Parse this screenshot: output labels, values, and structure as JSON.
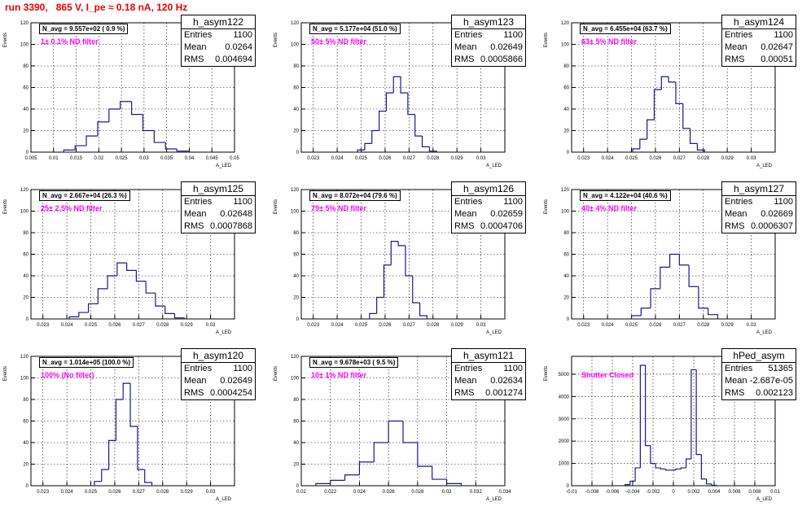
{
  "title": "run 3390,   865 V, I_pe ≈ 0.18 nA, 120 Hz",
  "chart_data": [
    {
      "type": "bar",
      "name": "h_asym122",
      "annotation": "N_avg = 9.557e+02 ( 0.9 %)",
      "filter": "1± 0.1% ND filter",
      "stats": {
        "Entries": "1100",
        "Mean": "0.0264",
        "RMS": "0.004694"
      },
      "xlim": [
        0.005,
        0.05
      ],
      "xticks": [
        "0.005",
        "0.01",
        "0.015",
        "0.02",
        "0.025",
        "0.03",
        "0.035",
        "0.04",
        "0.045",
        "0.05"
      ],
      "ylim": [
        0,
        120
      ],
      "yticks": [
        "0",
        "20",
        "40",
        "60",
        "80",
        "100",
        "120"
      ],
      "xlabel": "A_LED",
      "ylabel": "Events",
      "x": [
        0.0135,
        0.016,
        0.0185,
        0.021,
        0.0235,
        0.026,
        0.0285,
        0.031,
        0.0335,
        0.036,
        0.0385
      ],
      "values": [
        2,
        6,
        15,
        28,
        40,
        47,
        35,
        20,
        9,
        3,
        1
      ]
    },
    {
      "type": "bar",
      "name": "h_asym123",
      "annotation": "N_avg = 5.177e+04 (51.0 %)",
      "filter": "50± 5% ND filter",
      "stats": {
        "Entries": "1100",
        "Mean": "0.02649",
        "RMS": "0.0005866"
      },
      "xlim": [
        0.0225,
        0.031
      ],
      "xticks": [
        "0.023",
        "0.024",
        "0.025",
        "0.026",
        "0.027",
        "0.028",
        "0.029",
        "0.03"
      ],
      "ylim": [
        0,
        120
      ],
      "yticks": [
        "0",
        "20",
        "40",
        "60",
        "80",
        "100",
        "120"
      ],
      "xlabel": "A_LED",
      "ylabel": "Events",
      "x": [
        0.025,
        0.0253,
        0.0256,
        0.0259,
        0.0262,
        0.0265,
        0.0268,
        0.0271,
        0.0274,
        0.0277,
        0.028
      ],
      "values": [
        2,
        8,
        20,
        38,
        55,
        70,
        55,
        35,
        15,
        5,
        1
      ]
    },
    {
      "type": "bar",
      "name": "h_asym124",
      "annotation": "N_avg = 6.455e+04 (63.7 %)",
      "filter": "63± 5% ND filter",
      "stats": {
        "Entries": "1100",
        "Mean": "0.02647",
        "RMS": "0.00051"
      },
      "xlim": [
        0.0225,
        0.031
      ],
      "xticks": [
        "0.023",
        "0.024",
        "0.025",
        "0.026",
        "0.027",
        "0.028",
        "0.029",
        "0.03"
      ],
      "ylim": [
        0,
        120
      ],
      "yticks": [
        "0",
        "20",
        "40",
        "60",
        "80",
        "100",
        "120"
      ],
      "xlabel": "A_LED",
      "ylabel": "Events",
      "x": [
        0.0252,
        0.0255,
        0.0258,
        0.0261,
        0.0264,
        0.0267,
        0.027,
        0.0273,
        0.0276,
        0.0279
      ],
      "values": [
        3,
        12,
        30,
        58,
        70,
        65,
        45,
        22,
        8,
        2
      ]
    },
    {
      "type": "bar",
      "name": "h_asym125",
      "annotation": "N_avg = 2.667e+04 (26.3 %)",
      "filter": "25± 2.5% ND filter",
      "stats": {
        "Entries": "1100",
        "Mean": "0.02648",
        "RMS": "0.0007868"
      },
      "xlim": [
        0.0225,
        0.031
      ],
      "xticks": [
        "0.023",
        "0.024",
        "0.025",
        "0.026",
        "0.027",
        "0.028",
        "0.029",
        "0.03"
      ],
      "ylim": [
        0,
        120
      ],
      "yticks": [
        "0",
        "20",
        "40",
        "60",
        "80",
        "100",
        "120"
      ],
      "xlabel": "A_LED",
      "ylabel": "Events",
      "x": [
        0.0243,
        0.0247,
        0.0251,
        0.0255,
        0.0259,
        0.0263,
        0.0267,
        0.0271,
        0.0275,
        0.0279,
        0.0283,
        0.0287
      ],
      "values": [
        2,
        6,
        14,
        28,
        40,
        52,
        45,
        35,
        24,
        12,
        5,
        1
      ]
    },
    {
      "type": "bar",
      "name": "h_asym126",
      "annotation": "N_avg = 8.072e+04 (79.6 %)",
      "filter": "79± 5% ND filter",
      "stats": {
        "Entries": "1100",
        "Mean": "0.02659",
        "RMS": "0.0004706"
      },
      "xlim": [
        0.0225,
        0.031
      ],
      "xticks": [
        "0.023",
        "0.024",
        "0.025",
        "0.026",
        "0.027",
        "0.028",
        "0.029",
        "0.03"
      ],
      "ylim": [
        0,
        120
      ],
      "yticks": [
        "0",
        "20",
        "40",
        "60",
        "80",
        "100",
        "120"
      ],
      "xlabel": "A_LED",
      "ylabel": "Events",
      "x": [
        0.0255,
        0.0258,
        0.0261,
        0.0264,
        0.0267,
        0.027,
        0.0273,
        0.0276
      ],
      "values": [
        5,
        20,
        50,
        72,
        68,
        40,
        15,
        3
      ]
    },
    {
      "type": "bar",
      "name": "h_asym127",
      "annotation": "N_avg = 4.122e+04 (40.6 %)",
      "filter": "40± 4% ND filter",
      "stats": {
        "Entries": "1100",
        "Mean": "0.02669",
        "RMS": "0.0006307"
      },
      "xlim": [
        0.0225,
        0.031
      ],
      "xticks": [
        "0.023",
        "0.024",
        "0.025",
        "0.026",
        "0.027",
        "0.028",
        "0.029",
        "0.03"
      ],
      "ylim": [
        0,
        120
      ],
      "yticks": [
        "0",
        "20",
        "40",
        "60",
        "80",
        "100",
        "120"
      ],
      "xlabel": "A_LED",
      "ylabel": "Events",
      "x": [
        0.0252,
        0.0256,
        0.026,
        0.0264,
        0.0268,
        0.0272,
        0.0276,
        0.028,
        0.0284
      ],
      "values": [
        3,
        10,
        28,
        48,
        60,
        50,
        30,
        10,
        4
      ]
    },
    {
      "type": "bar",
      "name": "h_asym120",
      "annotation": "N_avg = 1.014e+05 (100.0 %)",
      "filter": "100% (No filter)",
      "stats": {
        "Entries": "1100",
        "Mean": "0.02649",
        "RMS": "0.0004254"
      },
      "xlim": [
        0.0225,
        0.031
      ],
      "xticks": [
        "0.023",
        "0.024",
        "0.025",
        "0.026",
        "0.027",
        "0.028",
        "0.029",
        "0.03"
      ],
      "ylim": [
        0,
        120
      ],
      "yticks": [
        "0",
        "20",
        "40",
        "60",
        "80",
        "100",
        "120"
      ],
      "xlabel": "A_LED",
      "ylabel": "Events",
      "x": [
        0.0253,
        0.0256,
        0.0259,
        0.0262,
        0.0265,
        0.0268,
        0.0271,
        0.0274
      ],
      "values": [
        4,
        15,
        42,
        80,
        95,
        55,
        15,
        3
      ]
    },
    {
      "type": "bar",
      "name": "h_asym121",
      "annotation": "N_avg = 9.678e+03 ( 9.5 %)",
      "filter": "10± 1% ND filter",
      "stats": {
        "Entries": "1100",
        "Mean": "0.02634",
        "RMS": "0.001274"
      },
      "xlim": [
        0.02,
        0.034
      ],
      "xticks": [
        "0.02",
        "0.022",
        "0.024",
        "0.026",
        "0.028",
        "0.03",
        "0.032",
        "0.034"
      ],
      "ylim": [
        0,
        120
      ],
      "yticks": [
        "0",
        "20",
        "40",
        "60",
        "80",
        "100",
        "120"
      ],
      "xlabel": "A_LED",
      "ylabel": "Events",
      "x": [
        0.0215,
        0.0225,
        0.0235,
        0.0245,
        0.0255,
        0.0265,
        0.0275,
        0.0285,
        0.0295,
        0.0305
      ],
      "values": [
        2,
        5,
        10,
        22,
        40,
        60,
        40,
        18,
        6,
        2
      ]
    },
    {
      "type": "bar",
      "name": "hPed_asym",
      "annotation": "",
      "filter": "Shutter Closed",
      "stats": {
        "Entries": "51365",
        "Mean": "-2.687e-05",
        "RMS": "0.002123"
      },
      "xlim": [
        -0.01,
        0.01
      ],
      "xticks": [
        "-0.01",
        "-0.008",
        "-0.006",
        "-0.004",
        "-0.002",
        "0",
        "0.002",
        "0.004",
        "0.006",
        "0.008",
        "0.01"
      ],
      "ylim": [
        0,
        5800
      ],
      "yticks": [
        "0",
        "1000",
        "2000",
        "3000",
        "4000",
        "5000"
      ],
      "xlabel": "A_LED",
      "ylabel": "Events",
      "x": [
        -0.0045,
        -0.004,
        -0.0035,
        -0.003,
        -0.0025,
        -0.002,
        -0.0015,
        -0.001,
        -0.0005,
        0,
        0.0005,
        0.001,
        0.0015,
        0.002,
        0.0025,
        0.003,
        0.0035,
        0.004
      ],
      "values": [
        50,
        200,
        800,
        5400,
        1800,
        1000,
        800,
        750,
        700,
        700,
        750,
        800,
        1200,
        5200,
        1400,
        300,
        80,
        20
      ]
    }
  ]
}
